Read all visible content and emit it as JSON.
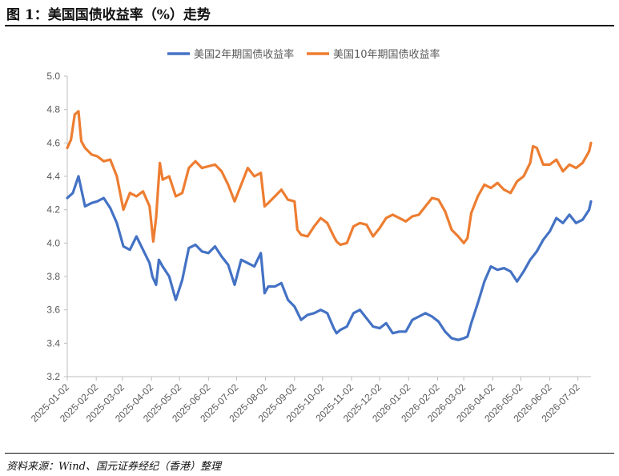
{
  "figure": {
    "title": "图 1：美国国债收益率（%）走势",
    "source": "资料来源：Wind、国元证券经纪（香港）整理"
  },
  "chart_data": {
    "type": "line",
    "legend_position": "top-center",
    "grid": false,
    "ylim": [
      3.2,
      5.0
    ],
    "yticks": [
      "3.2",
      "3.4",
      "3.6",
      "3.8",
      "4.0",
      "4.2",
      "4.4",
      "4.6",
      "4.8",
      "5.0"
    ],
    "xlim": [
      "2025-01-02",
      "2026-07-16"
    ],
    "xticks": [
      "2025-01-02",
      "2025-02-02",
      "2025-03-02",
      "2025-04-02",
      "2025-05-02",
      "2025-06-02",
      "2025-07-02",
      "2025-08-02",
      "2025-09-02",
      "2025-10-02",
      "2025-11-02",
      "2025-12-02",
      "2026-01-02",
      "2026-02-02",
      "2026-03-02",
      "2026-04-02",
      "2026-05-02",
      "2026-06-02",
      "2026-07-02"
    ],
    "colors": {
      "series_2y": "#4472c4",
      "series_10y": "#ed7d31",
      "axis": "#bfbfbf",
      "tick_text": "#595959"
    },
    "series": [
      {
        "name": "美国2年期国债收益率",
        "color": "#4472c4",
        "x": [
          "2025-01-02",
          "2025-01-08",
          "2025-01-14",
          "2025-01-21",
          "2025-01-28",
          "2025-02-03",
          "2025-02-10",
          "2025-02-17",
          "2025-02-24",
          "2025-03-03",
          "2025-03-10",
          "2025-03-17",
          "2025-03-24",
          "2025-03-31",
          "2025-04-03",
          "2025-04-07",
          "2025-04-10",
          "2025-04-14",
          "2025-04-21",
          "2025-04-28",
          "2025-05-05",
          "2025-05-12",
          "2025-05-19",
          "2025-05-26",
          "2025-06-02",
          "2025-06-09",
          "2025-06-16",
          "2025-06-23",
          "2025-06-30",
          "2025-07-07",
          "2025-07-14",
          "2025-07-21",
          "2025-07-28",
          "2025-08-01",
          "2025-08-05",
          "2025-08-12",
          "2025-08-19",
          "2025-08-26",
          "2025-09-02",
          "2025-09-09",
          "2025-09-16",
          "2025-09-23",
          "2025-09-30",
          "2025-10-07",
          "2025-10-14",
          "2025-10-17",
          "2025-10-21",
          "2025-10-28",
          "2025-11-04",
          "2025-11-11",
          "2025-11-18",
          "2025-11-25",
          "2025-12-02",
          "2025-12-09",
          "2025-12-16",
          "2025-12-23",
          "2025-12-30",
          "2026-01-06",
          "2026-01-13",
          "2026-01-20",
          "2026-01-27",
          "2026-02-03",
          "2026-02-10",
          "2026-02-17",
          "2026-02-24",
          "2026-03-02",
          "2026-03-06",
          "2026-03-10",
          "2026-03-17",
          "2026-03-24",
          "2026-03-31",
          "2026-04-07",
          "2026-04-14",
          "2026-04-21",
          "2026-04-28",
          "2026-05-05",
          "2026-05-12",
          "2026-05-19",
          "2026-05-26",
          "2026-06-02",
          "2026-06-09",
          "2026-06-16",
          "2026-06-23",
          "2026-06-30",
          "2026-07-07",
          "2026-07-14",
          "2026-07-16"
        ],
        "values": [
          4.27,
          4.3,
          4.4,
          4.22,
          4.24,
          4.25,
          4.27,
          4.21,
          4.12,
          3.98,
          3.96,
          4.04,
          3.96,
          3.88,
          3.8,
          3.75,
          3.9,
          3.86,
          3.8,
          3.66,
          3.78,
          3.97,
          3.99,
          3.95,
          3.94,
          3.98,
          3.92,
          3.87,
          3.75,
          3.9,
          3.88,
          3.86,
          3.94,
          3.7,
          3.74,
          3.74,
          3.76,
          3.66,
          3.62,
          3.54,
          3.57,
          3.58,
          3.6,
          3.58,
          3.49,
          3.46,
          3.48,
          3.5,
          3.58,
          3.6,
          3.55,
          3.5,
          3.49,
          3.52,
          3.46,
          3.47,
          3.47,
          3.54,
          3.56,
          3.58,
          3.56,
          3.53,
          3.47,
          3.43,
          3.42,
          3.43,
          3.44,
          3.52,
          3.64,
          3.77,
          3.86,
          3.84,
          3.85,
          3.83,
          3.77,
          3.83,
          3.9,
          3.95,
          4.02,
          4.07,
          4.15,
          4.12,
          4.17,
          4.12,
          4.14,
          4.2,
          4.25
        ]
      },
      {
        "name": "美国10年期国债收益率",
        "color": "#ed7d31",
        "x": [
          "2025-01-02",
          "2025-01-06",
          "2025-01-10",
          "2025-01-14",
          "2025-01-17",
          "2025-01-21",
          "2025-01-28",
          "2025-02-03",
          "2025-02-10",
          "2025-02-17",
          "2025-02-24",
          "2025-03-03",
          "2025-03-10",
          "2025-03-17",
          "2025-03-24",
          "2025-03-31",
          "2025-04-04",
          "2025-04-07",
          "2025-04-11",
          "2025-04-14",
          "2025-04-21",
          "2025-04-28",
          "2025-05-05",
          "2025-05-12",
          "2025-05-19",
          "2025-05-26",
          "2025-06-02",
          "2025-06-09",
          "2025-06-16",
          "2025-06-23",
          "2025-06-30",
          "2025-07-07",
          "2025-07-14",
          "2025-07-21",
          "2025-07-28",
          "2025-08-01",
          "2025-08-05",
          "2025-08-12",
          "2025-08-19",
          "2025-08-26",
          "2025-09-02",
          "2025-09-05",
          "2025-09-09",
          "2025-09-16",
          "2025-09-23",
          "2025-09-30",
          "2025-10-07",
          "2025-10-14",
          "2025-10-17",
          "2025-10-21",
          "2025-10-28",
          "2025-11-04",
          "2025-11-11",
          "2025-11-18",
          "2025-11-25",
          "2025-12-02",
          "2025-12-09",
          "2025-12-16",
          "2025-12-23",
          "2025-12-30",
          "2026-01-06",
          "2026-01-13",
          "2026-01-20",
          "2026-01-27",
          "2026-02-03",
          "2026-02-10",
          "2026-02-17",
          "2026-02-24",
          "2026-03-02",
          "2026-03-06",
          "2026-03-10",
          "2026-03-17",
          "2026-03-24",
          "2026-03-31",
          "2026-04-07",
          "2026-04-14",
          "2026-04-21",
          "2026-04-28",
          "2026-05-05",
          "2026-05-12",
          "2026-05-15",
          "2026-05-19",
          "2026-05-26",
          "2026-06-02",
          "2026-06-09",
          "2026-06-16",
          "2026-06-23",
          "2026-06-30",
          "2026-07-07",
          "2026-07-14",
          "2026-07-16"
        ],
        "values": [
          4.57,
          4.62,
          4.77,
          4.79,
          4.61,
          4.57,
          4.53,
          4.52,
          4.49,
          4.5,
          4.4,
          4.2,
          4.3,
          4.28,
          4.31,
          4.22,
          4.01,
          4.15,
          4.48,
          4.38,
          4.4,
          4.28,
          4.3,
          4.45,
          4.49,
          4.45,
          4.46,
          4.47,
          4.43,
          4.35,
          4.25,
          4.35,
          4.45,
          4.4,
          4.42,
          4.22,
          4.24,
          4.28,
          4.32,
          4.26,
          4.25,
          4.08,
          4.05,
          4.04,
          4.1,
          4.15,
          4.12,
          4.04,
          4.01,
          3.99,
          4.0,
          4.1,
          4.12,
          4.11,
          4.04,
          4.09,
          4.15,
          4.17,
          4.15,
          4.13,
          4.16,
          4.17,
          4.22,
          4.27,
          4.26,
          4.19,
          4.08,
          4.04,
          4.0,
          4.03,
          4.18,
          4.28,
          4.35,
          4.33,
          4.36,
          4.32,
          4.3,
          4.37,
          4.4,
          4.48,
          4.58,
          4.57,
          4.47,
          4.47,
          4.5,
          4.43,
          4.47,
          4.45,
          4.48,
          4.55,
          4.6
        ]
      }
    ]
  }
}
